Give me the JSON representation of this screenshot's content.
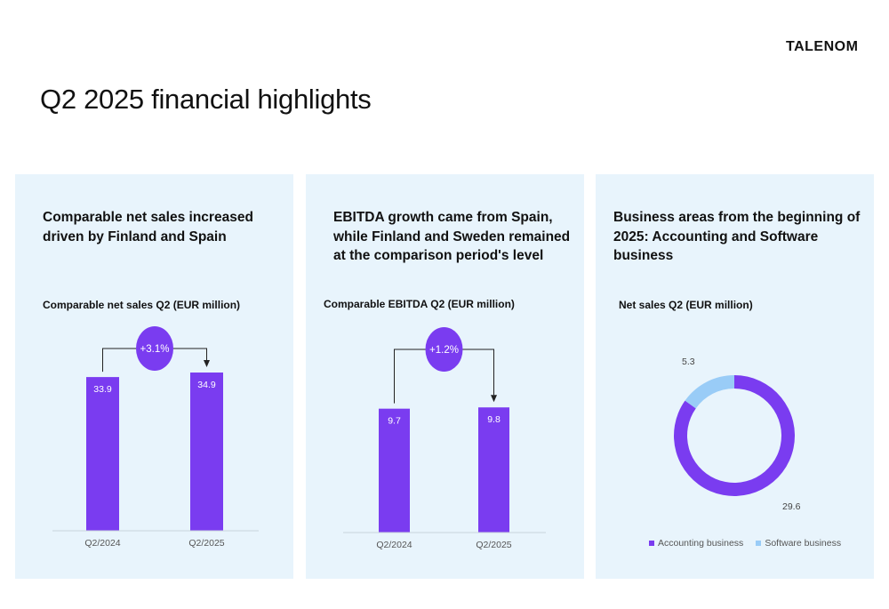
{
  "header": {
    "logo": "TALENOM",
    "title": "Q2 2025 financial highlights"
  },
  "colors": {
    "accent": "#7a3cf0",
    "software": "#99ccf7",
    "panel_bg": "#e8f4fc"
  },
  "panels": [
    {
      "heading": "Comparable net sales increased driven by Finland and Spain"
    },
    {
      "heading": "EBITDA growth came from Spain, while Finland and Sweden remained at the comparison period's level"
    },
    {
      "heading": "Business areas from the beginning of 2025: Accounting and Software business"
    }
  ],
  "chart_data": [
    {
      "type": "bar",
      "title": "Comparable net sales Q2 (EUR million)",
      "categories": [
        "Q2/2024",
        "Q2/2025"
      ],
      "values": [
        33.9,
        34.9
      ],
      "value_labels": [
        "33.9",
        "34.9"
      ],
      "change_label": "+3.1%",
      "ylim": [
        0,
        40
      ]
    },
    {
      "type": "bar",
      "title": "Comparable EBITDA Q2 (EUR million)",
      "categories": [
        "Q2/2024",
        "Q2/2025"
      ],
      "values": [
        9.7,
        9.8
      ],
      "value_labels": [
        "9.7",
        "9.8"
      ],
      "change_label": "+1.2%",
      "ylim": [
        0,
        11
      ]
    },
    {
      "type": "pie",
      "title": "Net sales Q2 (EUR million)",
      "categories": [
        "Accounting business",
        "Software business"
      ],
      "values": [
        29.6,
        5.3
      ],
      "value_labels": [
        "29.6",
        "5.3"
      ],
      "legend": "bottom"
    }
  ]
}
